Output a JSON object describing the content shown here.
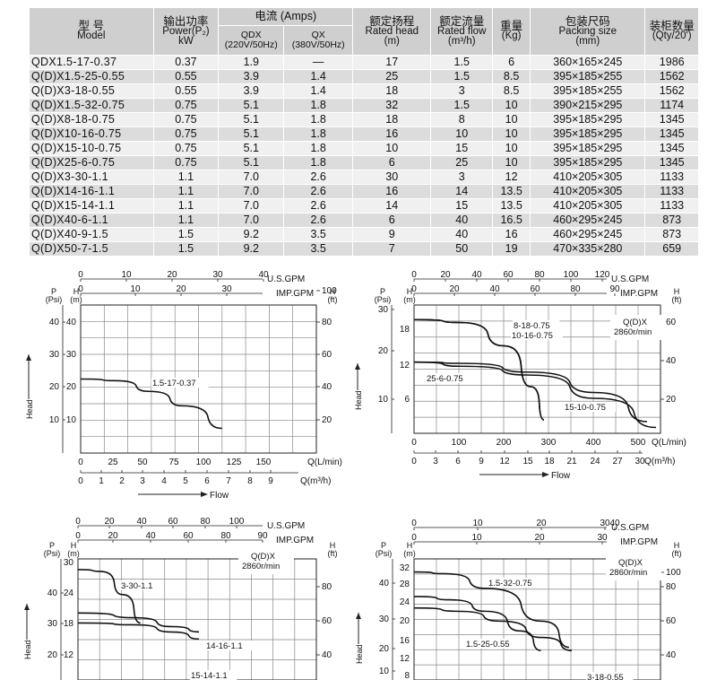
{
  "table": {
    "headers": [
      {
        "key": "model",
        "cn": "型 号",
        "en": "Model"
      },
      {
        "key": "power",
        "cn": "输出功率",
        "en": "Power(P₂)",
        "en2": "kW"
      },
      {
        "key": "current",
        "cn": "电流 (Amps)",
        "sub": [
          {
            "en": "QDX",
            "en2": "(220V/50Hz)"
          },
          {
            "en": "QX",
            "en2": "(380V/50Hz)"
          }
        ]
      },
      {
        "key": "head",
        "cn": "额定扬程",
        "en": "Rated head",
        "en2": "(m)"
      },
      {
        "key": "flow",
        "cn": "额定流量",
        "en": "Rated flow",
        "en2": "(m³/h)"
      },
      {
        "key": "weight",
        "cn": "重量",
        "en": "(Kg)"
      },
      {
        "key": "packing",
        "cn": "包装尺码",
        "en": "Packing size",
        "en2": "(mm)"
      },
      {
        "key": "qty",
        "cn": "装柜数量",
        "en": "(Qty/20')"
      }
    ],
    "rows": [
      [
        "QDX1.5-17-0.37",
        "0.37",
        "1.9",
        "—",
        "17",
        "1.5",
        "6",
        "360×165×245",
        "1986"
      ],
      [
        "Q(D)X1.5-25-0.55",
        "0.55",
        "3.9",
        "1.4",
        "25",
        "1.5",
        "8.5",
        "395×185×255",
        "1562"
      ],
      [
        "Q(D)X3-18-0.55",
        "0.55",
        "3.9",
        "1.4",
        "18",
        "3",
        "8.5",
        "395×185×255",
        "1562"
      ],
      [
        "Q(D)X1.5-32-0.75",
        "0.75",
        "5.1",
        "1.8",
        "32",
        "1.5",
        "10",
        "390×215×295",
        "1174"
      ],
      [
        "Q(D)X8-18-0.75",
        "0.75",
        "5.1",
        "1.8",
        "18",
        "8",
        "10",
        "395×185×295",
        "1345"
      ],
      [
        "Q(D)X10-16-0.75",
        "0.75",
        "5.1",
        "1.8",
        "16",
        "10",
        "10",
        "395×185×295",
        "1345"
      ],
      [
        "Q(D)X15-10-0.75",
        "0.75",
        "5.1",
        "1.8",
        "10",
        "15",
        "10",
        "395×185×295",
        "1345"
      ],
      [
        "Q(D)X25-6-0.75",
        "0.75",
        "5.1",
        "1.8",
        "6",
        "25",
        "10",
        "395×185×295",
        "1345"
      ],
      [
        "Q(D)X3-30-1.1",
        "1.1",
        "7.0",
        "2.6",
        "30",
        "3",
        "12",
        "410×205×305",
        "1133"
      ],
      [
        "Q(D)X14-16-1.1",
        "1.1",
        "7.0",
        "2.6",
        "16",
        "14",
        "13.5",
        "410×205×305",
        "1133"
      ],
      [
        "Q(D)X15-14-1.1",
        "1.1",
        "7.0",
        "2.6",
        "14",
        "15",
        "13.5",
        "410×205×305",
        "1133"
      ],
      [
        "Q(D)X40-6-1.1",
        "1.1",
        "7.0",
        "2.6",
        "6",
        "40",
        "16.5",
        "460×295×245",
        "873"
      ],
      [
        "Q(D)X40-9-1.5",
        "1.5",
        "9.2",
        "3.5",
        "9",
        "40",
        "16",
        "460×295×245",
        "873"
      ],
      [
        "Q(D)X50-7-1.5",
        "1.5",
        "9.2",
        "3.5",
        "7",
        "50",
        "19",
        "470×335×280",
        "659"
      ]
    ]
  },
  "chart_data": [
    {
      "type": "line",
      "label_usgpm": "U.S.GPM",
      "label_impgpm": "IMP.GPM",
      "label_psi": "(Psi)",
      "label_p": "P",
      "label_m": "(m)",
      "label_h": "H",
      "label_ft": "(ft)",
      "label_lmin": "Q(L/min)",
      "label_m3h": "Q(m³/h)",
      "label_head": "Head",
      "label_flow": "Flow",
      "info": "",
      "head_ticks": [
        "10",
        "20",
        "30",
        "40"
      ],
      "psi_ticks": [
        "10",
        "20",
        "30",
        "40"
      ],
      "ft_ticks": [
        "20",
        "40",
        "60",
        "80",
        "100"
      ],
      "lmin_ticks": [
        "0",
        "25",
        "50",
        "75",
        "100",
        "125",
        "150"
      ],
      "m3h_ticks": [
        "0",
        "1",
        "2",
        "3",
        "4",
        "5",
        "6",
        "7",
        "8",
        "9"
      ],
      "usgpm_ticks": [
        "0",
        "10",
        "20",
        "30",
        "40"
      ],
      "impgpm_ticks": [
        "0",
        "10",
        "20",
        "30"
      ],
      "ymax_m": 36,
      "xmax_lmin": 175,
      "series": [
        {
          "name": "1.5-17-0.37",
          "points": [
            [
              0,
              18
            ],
            [
              25,
              17.6
            ],
            [
              50,
              15
            ],
            [
              75,
              11.5
            ],
            [
              105,
              6
            ]
          ]
        }
      ]
    },
    {
      "type": "line",
      "label_usgpm": "U.S.GPM",
      "label_impgpm": "IMP.GPM",
      "label_psi": "(Psi)",
      "label_p": "P",
      "label_m": "(m)",
      "label_h": "H",
      "label_ft": "(ft)",
      "label_lmin": "Q(L/min)",
      "label_m3h": "Q(m³/h)",
      "label_head": "Head",
      "label_flow": "Flow",
      "info": "Q(D)X 2860r/min",
      "head_ticks": [
        "6",
        "12",
        "18"
      ],
      "psi_ticks": [
        "10",
        "20",
        "30"
      ],
      "ft_ticks": [
        "20",
        "40",
        "60"
      ],
      "lmin_ticks": [
        "0",
        "100",
        "200",
        "300",
        "400",
        "500"
      ],
      "m3h_ticks": [
        "0",
        "3",
        "6",
        "9",
        "12",
        "15",
        "18",
        "21",
        "24",
        "27",
        "30"
      ],
      "usgpm_ticks": [
        "0",
        "20",
        "40",
        "60",
        "80",
        "100",
        "120"
      ],
      "impgpm_ticks": [
        "0",
        "20",
        "40",
        "60",
        "80",
        "90"
      ],
      "ymax_m": 22,
      "xmax_lmin": 550,
      "series": [
        {
          "name": "8-18-0.75",
          "points": [
            [
              0,
              19.5
            ],
            [
              100,
              19
            ],
            [
              200,
              15
            ],
            [
              260,
              8
            ],
            [
              290,
              2.3
            ]
          ]
        },
        {
          "name": "10-16-0.75",
          "points": [
            [
              0,
              19.5
            ],
            [
              100,
              19
            ],
            [
              200,
              15
            ],
            [
              260,
              8
            ],
            [
              290,
              2.3
            ]
          ]
        },
        {
          "name": "25-6-0.75",
          "points": [
            [
              0,
              12.2
            ],
            [
              100,
              11.5
            ],
            [
              250,
              10
            ],
            [
              400,
              6
            ],
            [
              540,
              1
            ]
          ]
        },
        {
          "name": "15-10-0.75",
          "points": [
            [
              0,
              12.2
            ],
            [
              100,
              12
            ],
            [
              250,
              10.5
            ],
            [
              400,
              7
            ],
            [
              520,
              2
            ]
          ]
        }
      ]
    },
    {
      "type": "line",
      "label_usgpm": "U.S.GPM",
      "label_impgpm": "IMP.GPM",
      "label_psi": "(Psi)",
      "label_p": "P",
      "label_m": "(m)",
      "label_h": "H",
      "label_ft": "(ft)",
      "label_lmin": "",
      "label_m3h": "",
      "label_head": "Head",
      "label_flow": "",
      "info": "Q(D)X 2860r/min",
      "head_ticks": [
        "12",
        "18",
        "24",
        "30"
      ],
      "psi_ticks": [
        "20",
        "30",
        "40"
      ],
      "ft_ticks": [
        "40",
        "60",
        "80"
      ],
      "lmin_ticks": [],
      "m3h_ticks": [],
      "usgpm_ticks": [
        "0",
        "20",
        "40",
        "60",
        "80",
        "100"
      ],
      "impgpm_ticks": [
        "0",
        "20",
        "40",
        "60",
        "80",
        "90"
      ],
      "ymax_m": 34,
      "xmax_lmin": 650,
      "series": [
        {
          "name": "3-30-1.1",
          "points": [
            [
              0,
              31
            ],
            [
              60,
              30.5
            ],
            [
              120,
              24
            ],
            [
              170,
              16
            ]
          ]
        },
        {
          "name": "14-16-1.1",
          "points": [
            [
              0,
              18.8
            ],
            [
              150,
              17.5
            ],
            [
              250,
              15
            ],
            [
              330,
              13.5
            ]
          ]
        },
        {
          "name": "15-14-1.1",
          "points": [
            [
              0,
              16
            ],
            [
              150,
              15.5
            ],
            [
              250,
              13.5
            ],
            [
              330,
              11.5
            ]
          ]
        }
      ]
    },
    {
      "type": "line",
      "label_usgpm": "U.S.GPM",
      "label_impgpm": "IMP.GPM",
      "label_psi": "(Psi)",
      "label_p": "P",
      "label_m": "(m)",
      "label_h": "H",
      "label_ft": "(ft)",
      "label_lmin": "",
      "label_m3h": "",
      "label_head": "Head",
      "label_flow": "",
      "info": "Q(D)X 2860r/min",
      "head_ticks": [
        "8",
        "12",
        "16",
        "20",
        "24",
        "28",
        "32"
      ],
      "psi_ticks": [
        "10",
        "20",
        "30",
        "40"
      ],
      "ft_ticks": [
        "40",
        "60",
        "80",
        "100"
      ],
      "lmin_ticks": [],
      "m3h_ticks": [],
      "usgpm_ticks": [
        "0",
        "10",
        "20",
        "30",
        "40"
      ],
      "impgpm_ticks": [
        "0",
        "10",
        "20",
        "30"
      ],
      "ymax_m": 37,
      "xmax_lmin": 175,
      "series": [
        {
          "name": "1.5-32-0.75",
          "points": [
            [
              0,
              33
            ],
            [
              20,
              32.5
            ],
            [
              50,
              28
            ],
            [
              90,
              18
            ],
            [
              110,
              10
            ]
          ]
        },
        {
          "name": "1.5-25-0.55",
          "points": [
            [
              0,
              25.5
            ],
            [
              25,
              24.5
            ],
            [
              50,
              21
            ],
            [
              75,
              15
            ],
            [
              90,
              9
            ]
          ]
        },
        {
          "name": "3-18-0.55",
          "points": [
            [
              0,
              22
            ],
            [
              30,
              21
            ],
            [
              60,
              18
            ],
            [
              90,
              13
            ],
            [
              112,
              9
            ]
          ]
        }
      ]
    }
  ]
}
